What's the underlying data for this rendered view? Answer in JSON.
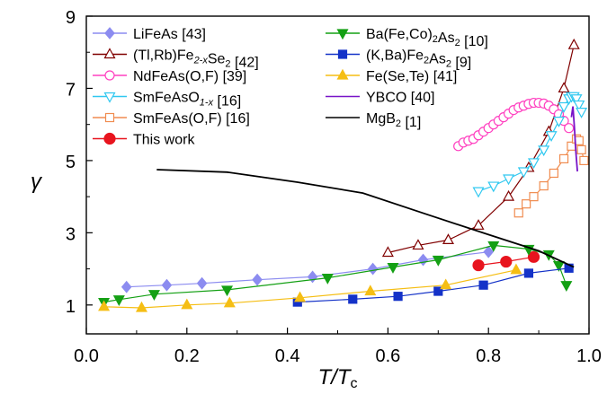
{
  "chart_data": {
    "type": "line",
    "xlabel": "T/Tc",
    "xlabel_main": "T/T",
    "xlabel_sub": "c",
    "ylabel": "γ",
    "xlim": [
      0,
      1.0
    ],
    "ylim": [
      0.2,
      9
    ],
    "xticks": [
      0.0,
      0.2,
      0.4,
      0.6,
      0.8,
      1.0
    ],
    "xtick_labels": [
      "0.0",
      "0.2",
      "0.4",
      "0.6",
      "0.8",
      "1.0"
    ],
    "yticks": [
      1,
      3,
      5,
      7,
      9
    ],
    "ytick_labels": [
      "1",
      "3",
      "5",
      "7",
      "9"
    ],
    "grid": false,
    "legend_placement": "top, two columns",
    "series": [
      {
        "name": "LiFeAs [43]",
        "label_parts": [
          {
            "t": "LiFeAs [43]"
          }
        ],
        "color": "#8C8CF0",
        "line_color": "#8C8CF0",
        "marker": "diamond",
        "filled": true,
        "x": [
          0.08,
          0.16,
          0.23,
          0.34,
          0.45,
          0.57,
          0.67,
          0.8
        ],
        "y": [
          1.5,
          1.55,
          1.6,
          1.7,
          1.78,
          2.0,
          2.25,
          2.47
        ]
      },
      {
        "name": "(Tl,Rb)Fe2-xSe2 [42]",
        "label_parts": [
          {
            "t": "(Tl,Rb)Fe"
          },
          {
            "t": "2-x",
            "sub": true,
            "i": true
          },
          {
            "t": "Se"
          },
          {
            "t": "2",
            "sub": true
          },
          {
            "t": " [42]"
          }
        ],
        "color": "#800000",
        "line_color": "#800000",
        "marker": "triangle-up",
        "filled": false,
        "x": [
          0.6,
          0.66,
          0.72,
          0.78,
          0.84,
          0.88,
          0.92,
          0.95,
          0.97
        ],
        "y": [
          2.45,
          2.65,
          2.8,
          3.2,
          4.0,
          4.8,
          5.8,
          7.0,
          8.2
        ]
      },
      {
        "name": "NdFeAs(O,F) [39]",
        "label_parts": [
          {
            "t": "NdFeAs(O,F) [39]"
          }
        ],
        "color": "#FF40C0",
        "line_color": "#FF40C0",
        "marker": "circle",
        "filled": false,
        "x": [
          0.74,
          0.75,
          0.76,
          0.77,
          0.78,
          0.79,
          0.8,
          0.81,
          0.82,
          0.83,
          0.84,
          0.85,
          0.86,
          0.87,
          0.88,
          0.89,
          0.9,
          0.91,
          0.92,
          0.93,
          0.94,
          0.95,
          0.96
        ],
        "y": [
          5.4,
          5.5,
          5.55,
          5.6,
          5.7,
          5.8,
          5.9,
          6.0,
          6.1,
          6.2,
          6.3,
          6.4,
          6.47,
          6.52,
          6.57,
          6.6,
          6.6,
          6.58,
          6.52,
          6.42,
          6.28,
          6.1,
          5.9
        ]
      },
      {
        "name": "SmFeAsO1-x [16]",
        "label_parts": [
          {
            "t": "SmFeAsO"
          },
          {
            "t": "1-x",
            "sub": true,
            "i": true
          },
          {
            "t": " [16]"
          }
        ],
        "color": "#30C8F0",
        "line_color": "#30C8F0",
        "marker": "triangle-down",
        "filled": false,
        "x": [
          0.78,
          0.81,
          0.84,
          0.87,
          0.89,
          0.91,
          0.925,
          0.94,
          0.95,
          0.96,
          0.965,
          0.97,
          0.975,
          0.98,
          0.985
        ],
        "y": [
          4.15,
          4.3,
          4.5,
          4.7,
          4.95,
          5.3,
          5.7,
          6.1,
          6.5,
          6.72,
          6.78,
          6.78,
          6.72,
          6.55,
          6.35
        ]
      },
      {
        "name": "SmFeAs(O,F) [16]",
        "label_parts": [
          {
            "t": "SmFeAs(O,F) [16]"
          }
        ],
        "color": "#F08C50",
        "line_color": "#F08C50",
        "marker": "square",
        "filled": false,
        "x": [
          0.86,
          0.875,
          0.89,
          0.91,
          0.93,
          0.95,
          0.965,
          0.975,
          0.98,
          0.985,
          0.99
        ],
        "y": [
          3.55,
          3.8,
          4.0,
          4.3,
          4.65,
          5.05,
          5.4,
          5.6,
          5.55,
          5.3,
          5.0
        ]
      },
      {
        "name": "This work",
        "label_parts": [
          {
            "t": "This work"
          }
        ],
        "color": "#E8141E",
        "line_color": "#E8141E",
        "marker": "circle",
        "filled": true,
        "marker_size": 6,
        "x": [
          0.78,
          0.835,
          0.89
        ],
        "y": [
          2.1,
          2.2,
          2.33
        ]
      },
      {
        "name": "Ba(Fe,Co)2As2 [10]",
        "label_parts": [
          {
            "t": "Ba(Fe,Co)"
          },
          {
            "t": "2",
            "sub": true
          },
          {
            "t": "As"
          },
          {
            "t": "2",
            "sub": true
          },
          {
            "t": " [10]"
          }
        ],
        "color": "#14A014",
        "line_color": "#14A014",
        "marker": "triangle-down",
        "filled": true,
        "x": [
          0.035,
          0.065,
          0.135,
          0.28,
          0.48,
          0.61,
          0.7,
          0.81,
          0.88,
          0.92,
          0.94,
          0.955
        ],
        "y": [
          1.08,
          1.15,
          1.3,
          1.42,
          1.75,
          2.05,
          2.25,
          2.65,
          2.55,
          2.4,
          2.1,
          1.55
        ]
      },
      {
        "name": "(K,Ba)Fe2As2 [9]",
        "label_parts": [
          {
            "t": "(K,Ba)Fe"
          },
          {
            "t": "2",
            "sub": true
          },
          {
            "t": "As"
          },
          {
            "t": "2",
            "sub": true
          },
          {
            "t": " [9]"
          }
        ],
        "color": "#1432C8",
        "line_color": "#1432C8",
        "marker": "square",
        "filled": true,
        "x": [
          0.42,
          0.53,
          0.62,
          0.7,
          0.79,
          0.88,
          0.96
        ],
        "y": [
          1.08,
          1.16,
          1.24,
          1.38,
          1.55,
          1.88,
          2.02
        ]
      },
      {
        "name": "Fe(Se,Te) [41]",
        "label_parts": [
          {
            "t": "Fe(Se,Te) [41]"
          }
        ],
        "color": "#F5BE14",
        "line_color": "#F5BE14",
        "marker": "triangle-up",
        "filled": true,
        "x": [
          0.035,
          0.11,
          0.2,
          0.285,
          0.425,
          0.565,
          0.715,
          0.855
        ],
        "y": [
          0.95,
          0.92,
          1.0,
          1.05,
          1.2,
          1.38,
          1.55,
          1.97
        ]
      },
      {
        "name": "YBCO [40]",
        "label_parts": [
          {
            "t": "YBCO [40]"
          }
        ],
        "color": "#7814C8",
        "line_color": "#7814C8",
        "marker": "none",
        "filled": false,
        "x": [
          0.965,
          0.968,
          0.971,
          0.974,
          0.977
        ],
        "y": [
          6.2,
          6.5,
          5.9,
          5.2,
          4.7
        ]
      },
      {
        "name": "MgB2 [1]",
        "label_parts": [
          {
            "t": "MgB"
          },
          {
            "t": "2",
            "sub": true
          },
          {
            "t": " [1]"
          }
        ],
        "color": "#000000",
        "line_color": "#000000",
        "marker": "none",
        "filled": false,
        "x": [
          0.14,
          0.28,
          0.42,
          0.55,
          0.68,
          0.8,
          0.9,
          0.97
        ],
        "y": [
          4.75,
          4.68,
          4.4,
          4.1,
          3.5,
          2.95,
          2.5,
          2.05
        ]
      }
    ]
  }
}
